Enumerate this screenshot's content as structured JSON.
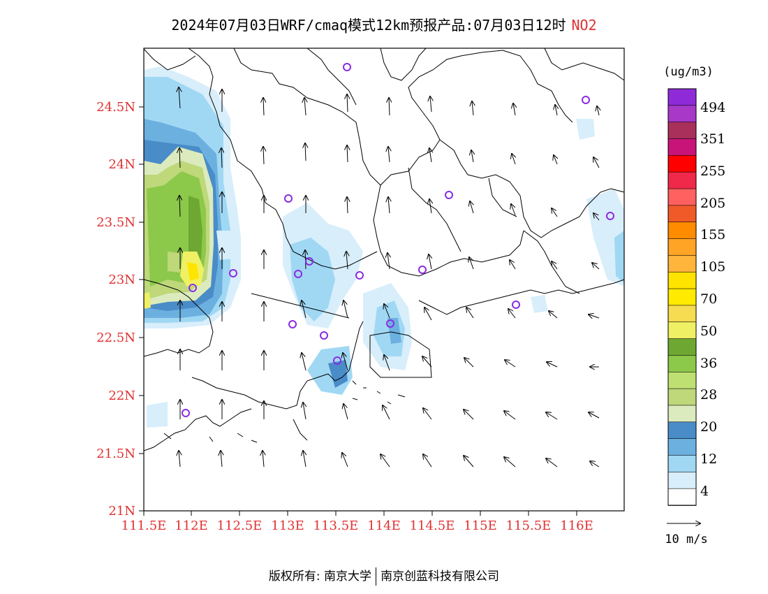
{
  "header": {
    "title": "2024年07月03日WRF/cmaq模式12km预报产品:07月03日12时",
    "species": "NO2"
  },
  "map": {
    "lat_ticks": [
      "24.5N",
      "24N",
      "23.5N",
      "23N",
      "22.5N",
      "22N",
      "21.5N",
      "21N"
    ],
    "lon_ticks": [
      "111.5E",
      "112E",
      "112.5E",
      "113E",
      "113.5E",
      "114E",
      "114.5E",
      "115E",
      "115.5E",
      "116E"
    ],
    "lon_range": [
      111.5,
      116.3
    ],
    "lat_range": [
      21.0,
      25.0
    ]
  },
  "colorbar": {
    "unit": "(ug/m3)",
    "labels": [
      "494",
      "351",
      "255",
      "205",
      "155",
      "105",
      "70",
      "50",
      "36",
      "28",
      "20",
      "12",
      "4"
    ],
    "colors": [
      "#8e2ad8",
      "#a838c8",
      "#a8305a",
      "#c81478",
      "#ff0000",
      "#f0284a",
      "#ff6060",
      "#f05a28",
      "#ff8c00",
      "#ffa424",
      "#ffb43c",
      "#ffe400",
      "#ffea00",
      "#f5dc50",
      "#f0f064",
      "#6ea832",
      "#8cc84a",
      "#bee072",
      "#bed87a",
      "#dcebbe",
      "#4a8cc8",
      "#6cb0e0",
      "#a0d8f4",
      "#d8eefa",
      "#ffffff"
    ]
  },
  "wind_legend": {
    "label": "10 m/s"
  },
  "footer": {
    "left": "版权所有: 南京大学",
    "right": "南京创蓝科技有限公司"
  }
}
